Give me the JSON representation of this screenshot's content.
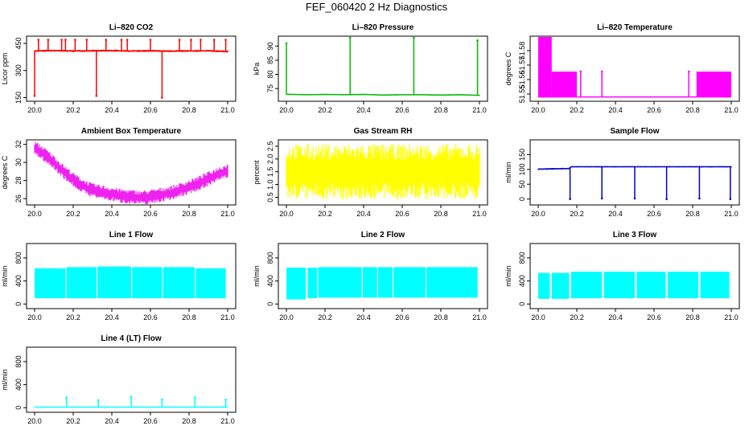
{
  "page": {
    "title": "FEF_060420  2 Hz Diagnostics"
  },
  "chart_data": [
    {
      "type": "line",
      "title": "Li–820 CO2",
      "ylabel": "Licor ppm",
      "color": "#ff0000",
      "xlim": [
        20.0,
        21.0
      ],
      "ylim": [
        130,
        490
      ],
      "yticks": [
        150,
        300,
        450
      ],
      "ytick_labels": [
        "150",
        "300",
        "450"
      ],
      "xticks": [
        20.0,
        20.2,
        20.4,
        20.6,
        20.8,
        21.0
      ],
      "xtick_labels": [
        "20.0",
        "20.2",
        "20.4",
        "20.6",
        "20.8",
        "21.0"
      ],
      "x": [
        20.0,
        20.1,
        20.2,
        20.3,
        20.4,
        20.5,
        20.6,
        20.7,
        20.8,
        20.9,
        21.0
      ],
      "y": [
        408,
        410,
        408,
        409,
        410,
        408,
        409,
        407,
        408,
        409,
        405
      ],
      "band": [
        6,
        6,
        6,
        6,
        6,
        6,
        6,
        6,
        6,
        6,
        6
      ],
      "spikes": [
        [
          20.0,
          160
        ],
        [
          20.02,
          470
        ],
        [
          20.07,
          470
        ],
        [
          20.14,
          470
        ],
        [
          20.16,
          470
        ],
        [
          20.21,
          470
        ],
        [
          20.27,
          470
        ],
        [
          20.32,
          160
        ],
        [
          20.37,
          470
        ],
        [
          20.45,
          470
        ],
        [
          20.48,
          470
        ],
        [
          20.6,
          470
        ],
        [
          20.66,
          150
        ],
        [
          20.75,
          470
        ],
        [
          20.81,
          470
        ],
        [
          20.86,
          470
        ],
        [
          20.93,
          470
        ],
        [
          20.99,
          470
        ]
      ]
    },
    {
      "type": "line",
      "title": "Li–820 Pressure",
      "ylabel": "kPa",
      "color": "#00bb00",
      "xlim": [
        20.0,
        21.0
      ],
      "ylim": [
        70.5,
        93.5
      ],
      "yticks": [
        75,
        80,
        85,
        90
      ],
      "ytick_labels": [
        "75",
        "80",
        "85",
        "90"
      ],
      "xticks": [
        20.0,
        20.2,
        20.4,
        20.6,
        20.8,
        21.0
      ],
      "xtick_labels": [
        "20.0",
        "20.2",
        "20.4",
        "20.6",
        "20.8",
        "21.0"
      ],
      "x": [
        20.0,
        20.1,
        20.2,
        20.3,
        20.4,
        20.5,
        20.6,
        20.7,
        20.8,
        20.9,
        21.0
      ],
      "y": [
        73.0,
        72.8,
        72.9,
        72.8,
        72.9,
        72.7,
        72.8,
        72.8,
        72.7,
        72.8,
        72.6
      ],
      "band": [
        0.2,
        0.2,
        0.2,
        0.2,
        0.2,
        0.2,
        0.2,
        0.2,
        0.2,
        0.2,
        0.2
      ],
      "spikes": [
        [
          20.0,
          91
        ],
        [
          20.33,
          93
        ],
        [
          20.66,
          93
        ],
        [
          20.99,
          92
        ]
      ]
    },
    {
      "type": "line",
      "title": "Li–820 Temperature",
      "ylabel": "degrees C",
      "color": "#ff00ff",
      "xlim": [
        20.0,
        21.0
      ],
      "ylim": [
        51.545,
        51.59
      ],
      "yticks": [
        51.55,
        51.56,
        51.57,
        51.58
      ],
      "ytick_labels": [
        "51.55",
        "51.56",
        "51.57",
        "51.58"
      ],
      "xticks": [
        20.0,
        20.2,
        20.4,
        20.6,
        20.8,
        21.0
      ],
      "xtick_labels": [
        "20.0",
        "20.2",
        "20.4",
        "20.6",
        "20.8",
        "21.0"
      ],
      "x": [],
      "y": [],
      "band": [],
      "blocks": [
        [
          20.0,
          20.07,
          51.548,
          51.59
        ],
        [
          20.07,
          20.2,
          51.548,
          51.5655
        ],
        [
          20.82,
          21.0,
          51.548,
          51.5655
        ]
      ],
      "baseline": 51.548,
      "spikes": [
        [
          20.22,
          51.5655
        ],
        [
          20.33,
          51.5655
        ],
        [
          20.78,
          51.5655
        ]
      ]
    },
    {
      "type": "line",
      "title": "Ambient Box Temperature",
      "ylabel": "degrees C",
      "color": "#ee22ee",
      "xlim": [
        20.0,
        21.0
      ],
      "ylim": [
        25.3,
        32.5
      ],
      "yticks": [
        26,
        28,
        30,
        32
      ],
      "ytick_labels": [
        "26",
        "28",
        "30",
        "32"
      ],
      "xticks": [
        20.0,
        20.2,
        20.4,
        20.6,
        20.8,
        21.0
      ],
      "xtick_labels": [
        "20.0",
        "20.2",
        "20.4",
        "20.6",
        "20.8",
        "21.0"
      ],
      "x": [
        20.0,
        20.05,
        20.1,
        20.15,
        20.2,
        20.25,
        20.3,
        20.35,
        20.4,
        20.45,
        20.5,
        20.55,
        20.6,
        20.65,
        20.7,
        20.75,
        20.8,
        20.85,
        20.9,
        20.95,
        21.0
      ],
      "y": [
        31.6,
        30.9,
        30.0,
        29.0,
        28.1,
        27.4,
        26.9,
        26.7,
        26.5,
        26.3,
        26.2,
        26.1,
        26.2,
        26.4,
        26.6,
        26.9,
        27.3,
        27.7,
        28.2,
        28.7,
        29.1
      ],
      "band": [
        0.8,
        0.8,
        0.8,
        0.8,
        0.8,
        0.8,
        0.8,
        0.8,
        0.8,
        0.8,
        0.8,
        0.8,
        0.8,
        0.8,
        0.8,
        0.8,
        0.8,
        0.8,
        0.8,
        0.8,
        0.8
      ],
      "spikes": []
    },
    {
      "type": "line",
      "title": "Gas Stream RH",
      "ylabel": "percent",
      "color": "#ffff00",
      "xlim": [
        20.0,
        21.0
      ],
      "ylim": [
        0.2,
        2.75
      ],
      "yticks": [
        0.5,
        1.0,
        1.5,
        2.0,
        2.5
      ],
      "ytick_labels": [
        "0.5",
        "1.0",
        "1.5",
        "2.0",
        "2.5"
      ],
      "xticks": [
        20.0,
        20.2,
        20.4,
        20.6,
        20.8,
        21.0
      ],
      "xtick_labels": [
        "20.0",
        "20.2",
        "20.4",
        "20.6",
        "20.8",
        "21.0"
      ],
      "x": [
        20.0,
        21.0
      ],
      "y": [
        1.5,
        1.5
      ],
      "band": [
        1.1,
        1.1
      ],
      "spikes": []
    },
    {
      "type": "line",
      "title": "Sample Flow",
      "ylabel": "ml/min",
      "color": "#0000cc",
      "xlim": [
        20.0,
        21.0
      ],
      "ylim": [
        -20,
        200
      ],
      "yticks": [
        0,
        50,
        100,
        150
      ],
      "ytick_labels": [
        "0",
        "50",
        "100",
        "150"
      ],
      "xticks": [
        20.0,
        20.2,
        20.4,
        20.6,
        20.8,
        21.0
      ],
      "xtick_labels": [
        "20.0",
        "20.2",
        "20.4",
        "20.6",
        "20.8",
        "21.0"
      ],
      "x": [
        20.0,
        20.16,
        20.17,
        21.0
      ],
      "y": [
        101,
        103,
        109,
        109
      ],
      "band": [
        3,
        3,
        2,
        2
      ],
      "spikes": [
        [
          20.165,
          0
        ],
        [
          20.33,
          2
        ],
        [
          20.5,
          2
        ],
        [
          20.665,
          0
        ],
        [
          20.835,
          2
        ],
        [
          20.995,
          0
        ]
      ]
    },
    {
      "type": "line",
      "title": "Line 1 Flow",
      "ylabel": "ml/min",
      "color": "#00ffff",
      "xlim": [
        20.0,
        21.0
      ],
      "ylim": [
        -80,
        1050
      ],
      "yticks": [
        0,
        400,
        800
      ],
      "ytick_labels": [
        "0",
        "400",
        "800"
      ],
      "xticks": [
        20.0,
        20.2,
        20.4,
        20.6,
        20.8,
        21.0
      ],
      "xtick_labels": [
        "20.0",
        "20.2",
        "20.4",
        "20.6",
        "20.8",
        "21.0"
      ],
      "blocks": [
        [
          20.0,
          20.16,
          100,
          620
        ],
        [
          20.165,
          20.32,
          100,
          640
        ],
        [
          20.325,
          20.5,
          100,
          650
        ],
        [
          20.505,
          20.66,
          100,
          640
        ],
        [
          20.665,
          20.83,
          100,
          640
        ],
        [
          20.835,
          20.99,
          100,
          620
        ]
      ],
      "x": [],
      "y": [],
      "band": [],
      "spikes": []
    },
    {
      "type": "line",
      "title": "Line 2 Flow",
      "ylabel": "ml/min",
      "color": "#00ffff",
      "xlim": [
        20.0,
        21.0
      ],
      "ylim": [
        -80,
        1050
      ],
      "yticks": [
        0,
        400,
        800
      ],
      "ytick_labels": [
        "0",
        "400",
        "800"
      ],
      "xticks": [
        20.0,
        20.2,
        20.4,
        20.6,
        20.8,
        21.0
      ],
      "xtick_labels": [
        "20.0",
        "20.2",
        "20.4",
        "20.6",
        "20.8",
        "21.0"
      ],
      "blocks": [
        [
          20.0,
          20.1,
          80,
          630
        ],
        [
          20.11,
          20.16,
          100,
          630
        ],
        [
          20.165,
          20.39,
          110,
          640
        ],
        [
          20.395,
          20.47,
          110,
          640
        ],
        [
          20.475,
          20.55,
          110,
          640
        ],
        [
          20.555,
          20.72,
          110,
          640
        ],
        [
          20.725,
          20.99,
          110,
          640
        ]
      ],
      "x": [],
      "y": [],
      "band": [],
      "spikes": []
    },
    {
      "type": "line",
      "title": "Line 3 Flow",
      "ylabel": "ml/min",
      "color": "#00ffff",
      "xlim": [
        20.0,
        21.0
      ],
      "ylim": [
        -80,
        1050
      ],
      "yticks": [
        0,
        400,
        800
      ],
      "ytick_labels": [
        "0",
        "400",
        "800"
      ],
      "xticks": [
        20.0,
        20.2,
        20.4,
        20.6,
        20.8,
        21.0
      ],
      "xtick_labels": [
        "20.0",
        "20.2",
        "20.4",
        "20.6",
        "20.8",
        "21.0"
      ],
      "blocks": [
        [
          20.0,
          20.06,
          90,
          540
        ],
        [
          20.07,
          20.16,
          90,
          540
        ],
        [
          20.17,
          20.33,
          100,
          560
        ],
        [
          20.34,
          20.5,
          100,
          560
        ],
        [
          20.51,
          20.66,
          100,
          560
        ],
        [
          20.67,
          20.83,
          100,
          560
        ],
        [
          20.84,
          20.99,
          100,
          560
        ]
      ],
      "x": [],
      "y": [],
      "band": [],
      "spikes": []
    },
    {
      "type": "line",
      "title": "Line 4 (LT) Flow",
      "ylabel": "ml/min",
      "color": "#00ffff",
      "xlim": [
        20.0,
        21.0
      ],
      "ylim": [
        -80,
        1050
      ],
      "yticks": [
        0,
        400,
        800
      ],
      "ytick_labels": [
        "0",
        "400",
        "800"
      ],
      "xticks": [
        20.0,
        20.2,
        20.4,
        20.6,
        20.8,
        21.0
      ],
      "xtick_labels": [
        "20.0",
        "20.2",
        "20.4",
        "20.6",
        "20.8",
        "21.0"
      ],
      "x": [
        20.0,
        21.0
      ],
      "y": [
        10,
        10
      ],
      "band": [
        6,
        6
      ],
      "spikes": [
        [
          20.165,
          180
        ],
        [
          20.33,
          130
        ],
        [
          20.5,
          190
        ],
        [
          20.66,
          140
        ],
        [
          20.83,
          180
        ],
        [
          20.99,
          140
        ]
      ]
    }
  ]
}
